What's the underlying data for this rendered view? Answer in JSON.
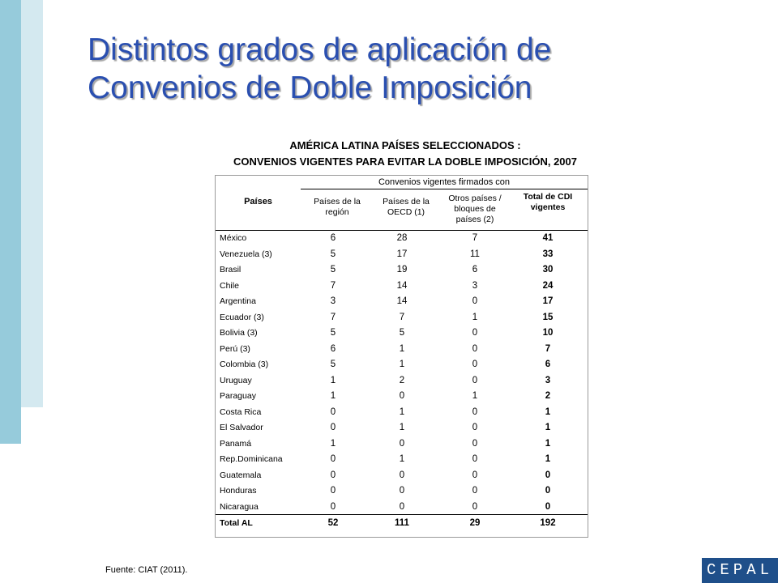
{
  "title": {
    "line1": "Distintos grados de aplicación de",
    "line2": "Convenios de Doble Imposición"
  },
  "table_title": {
    "line1": "AMÉRICA LATINA PAÍSES SELECCIONADOS :",
    "line2": "CONVENIOS VIGENTES PARA EVITAR LA DOBLE IMPOSICIÓN, 2007"
  },
  "table": {
    "group_header": "Convenios vigentes firmados con",
    "country_header": "Países",
    "columns": [
      [
        "Países de la",
        "región"
      ],
      [
        "Países de la",
        "OECD (1)"
      ],
      [
        "Otros países /",
        "bloques de",
        "países (2)"
      ],
      [
        "Total de CDI",
        "vigentes"
      ]
    ],
    "rows": [
      {
        "pais": "México",
        "region": "6",
        "oecd": "28",
        "otros": "7",
        "total": "41"
      },
      {
        "pais": "Venezuela  (3)",
        "region": "5",
        "oecd": "17",
        "otros": "11",
        "total": "33"
      },
      {
        "pais": "Brasil",
        "region": "5",
        "oecd": "19",
        "otros": "6",
        "total": "30"
      },
      {
        "pais": "Chile",
        "region": "7",
        "oecd": "14",
        "otros": "3",
        "total": "24"
      },
      {
        "pais": "Argentina",
        "region": "3",
        "oecd": "14",
        "otros": "0",
        "total": "17"
      },
      {
        "pais": "Ecuador  (3)",
        "region": "7",
        "oecd": "7",
        "otros": "1",
        "total": "15"
      },
      {
        "pais": "Bolivia  (3)",
        "region": "5",
        "oecd": "5",
        "otros": "0",
        "total": "10"
      },
      {
        "pais": "Perú  (3)",
        "region": "6",
        "oecd": "1",
        "otros": "0",
        "total": "7"
      },
      {
        "pais": "Colombia  (3)",
        "region": "5",
        "oecd": "1",
        "otros": "0",
        "total": "6"
      },
      {
        "pais": "Uruguay",
        "region": "1",
        "oecd": "2",
        "otros": "0",
        "total": "3"
      },
      {
        "pais": "Paraguay",
        "region": "1",
        "oecd": "0",
        "otros": "1",
        "total": "2"
      },
      {
        "pais": "Costa Rica",
        "region": "0",
        "oecd": "1",
        "otros": "0",
        "total": "1"
      },
      {
        "pais": "El Salvador",
        "region": "0",
        "oecd": "1",
        "otros": "0",
        "total": "1"
      },
      {
        "pais": "Panamá",
        "region": "1",
        "oecd": "0",
        "otros": "0",
        "total": "1"
      },
      {
        "pais": "Rep.Dominicana",
        "region": "0",
        "oecd": "1",
        "otros": "0",
        "total": "1"
      },
      {
        "pais": "Guatemala",
        "region": "0",
        "oecd": "0",
        "otros": "0",
        "total": "0"
      },
      {
        "pais": "Honduras",
        "region": "0",
        "oecd": "0",
        "otros": "0",
        "total": "0"
      },
      {
        "pais": "Nicaragua",
        "region": "0",
        "oecd": "0",
        "otros": "0",
        "total": "0"
      },
      {
        "pais": "Total AL",
        "region": "52",
        "oecd": "111",
        "otros": "29",
        "total": "192"
      }
    ]
  },
  "source": "Fuente: CIAT (2011).",
  "logo": "CEPAL",
  "colors": {
    "title": "#2a4fb0",
    "accent_bar_dark": "#96cbdb",
    "accent_bar_light": "#d4e9f0",
    "logo_bg": "#1f4f8a"
  }
}
